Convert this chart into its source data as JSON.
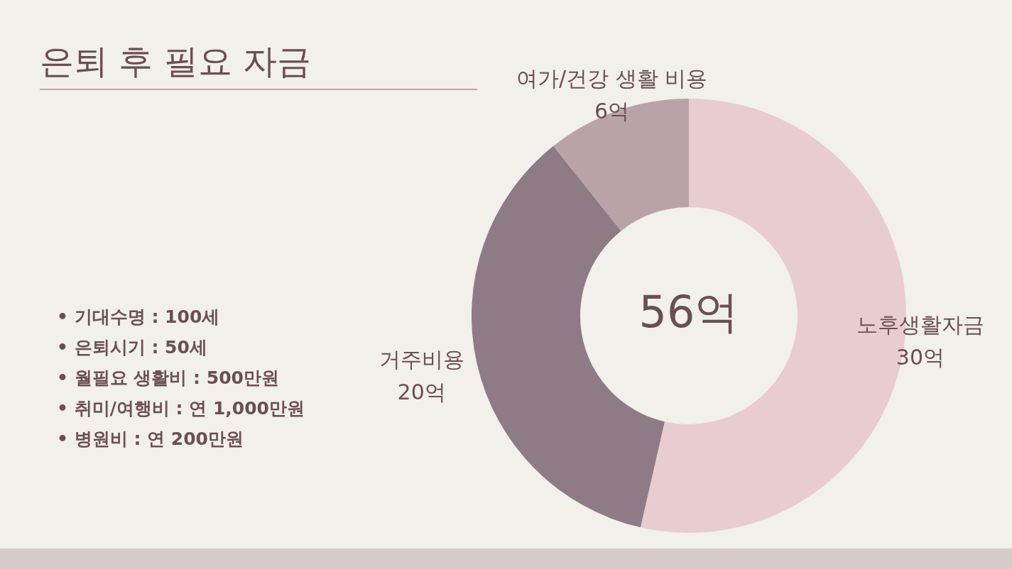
{
  "chart_data": {
    "type": "donut",
    "title": "은퇴 후 필요 자금",
    "categories": [
      "노후생활자금",
      "거주비용",
      "여가/건강 생활 비용"
    ],
    "values": [
      30,
      20,
      6
    ],
    "value_labels": [
      "30억",
      "20억",
      "6억"
    ],
    "colors": [
      "#e8cccf",
      "#8e7b86",
      "#baa3a8"
    ],
    "legend": false,
    "annotations": [
      "56억",
      "• 기대수명  : 100세",
      "• 은퇴시기 : 50세",
      "• 월필요 생활비 : 500만원",
      "• 취미/여행비 : 연 1,000만원",
      "• 병원비 : 연 200만원"
    ]
  }
}
